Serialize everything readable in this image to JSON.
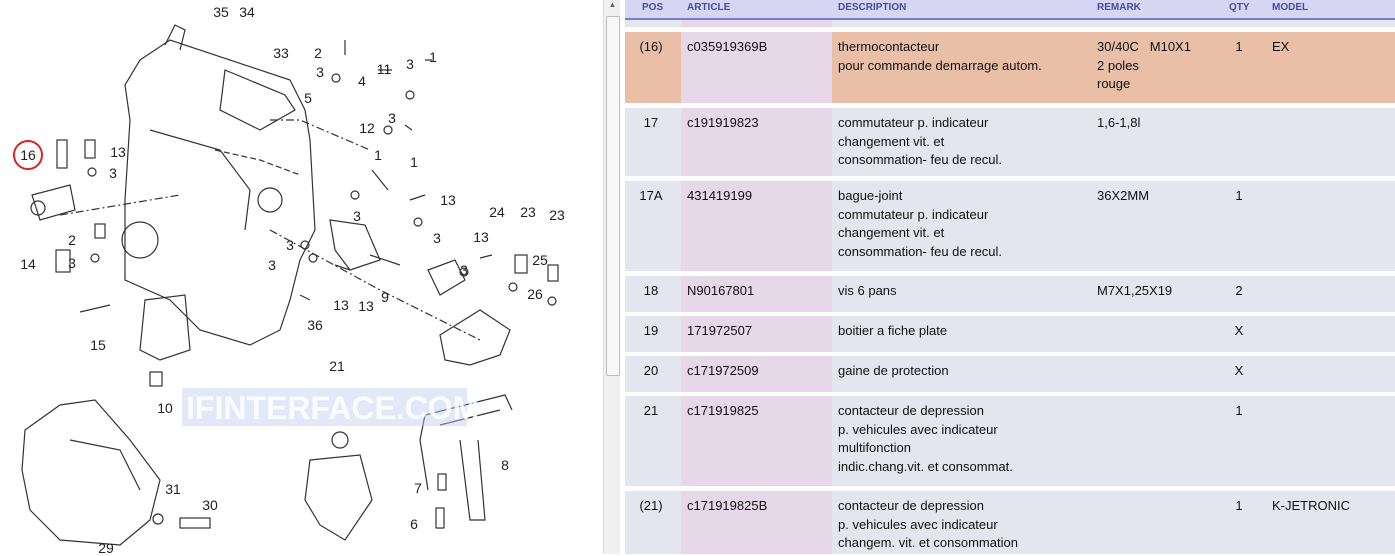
{
  "diagram": {
    "watermark": "IFINTERFACE.COM",
    "highlighted_callout": "16",
    "callouts": [
      "35",
      "34",
      "33",
      "2",
      "3",
      "4",
      "5",
      "11",
      "3",
      "1",
      "12",
      "3",
      "1",
      "16",
      "13",
      "3",
      "1",
      "3",
      "13",
      "3",
      "24",
      "23",
      "23",
      "2",
      "3",
      "14",
      "3",
      "3",
      "13",
      "3",
      "25",
      "9",
      "13",
      "13",
      "26",
      "36",
      "15",
      "10",
      "21",
      "8",
      "7",
      "6",
      "31",
      "30",
      "29"
    ]
  },
  "table": {
    "headers": {
      "pos": "POS",
      "article": "ARTICLE",
      "description": "DESCRIPTION",
      "remark": "REMARK",
      "qty": "QTY",
      "model": "MODEL"
    },
    "highlight_color": "#e9bfa8",
    "rows": [
      {
        "pos": "(16)",
        "article": "c035919369B",
        "description": "thermocontacteur\npour commande demarrage autom.",
        "remark": "30/40C   M10X1\n2 poles\nrouge",
        "qty": "1",
        "model": "EX"
      },
      {
        "pos": "17",
        "article": "c191919823",
        "description": "commutateur p. indicateur\nchangement vit. et\nconsommation- feu de recul.",
        "remark": "1,6-1,8l",
        "qty": "",
        "model": ""
      },
      {
        "pos": "17A",
        "article": "431419199",
        "description": "bague-joint\ncommutateur p. indicateur\nchangement vit. et\nconsommation- feu de recul.",
        "remark": "36X2MM",
        "qty": "1",
        "model": ""
      },
      {
        "pos": "18",
        "article": "N90167801",
        "description": "vis 6 pans",
        "remark": "M7X1,25X19",
        "qty": "2",
        "model": ""
      },
      {
        "pos": "19",
        "article": "171972507",
        "description": "boitier a fiche plate",
        "remark": "",
        "qty": "X",
        "model": ""
      },
      {
        "pos": "20",
        "article": "c171972509",
        "description": "gaine de protection",
        "remark": "",
        "qty": "X",
        "model": ""
      },
      {
        "pos": "21",
        "article": "c171919825",
        "description": "contacteur de depression\np. vehicules avec indicateur\nmultifonction\nindic.chang.vit. et consommat.",
        "remark": "",
        "qty": "1",
        "model": ""
      },
      {
        "pos": "(21)",
        "article": "c171919825B",
        "description": "contacteur de depression\np. vehicules avec indicateur\nchangem. vit. et consommation",
        "remark": "",
        "qty": "1",
        "model": "K-JETRONIC"
      }
    ]
  }
}
